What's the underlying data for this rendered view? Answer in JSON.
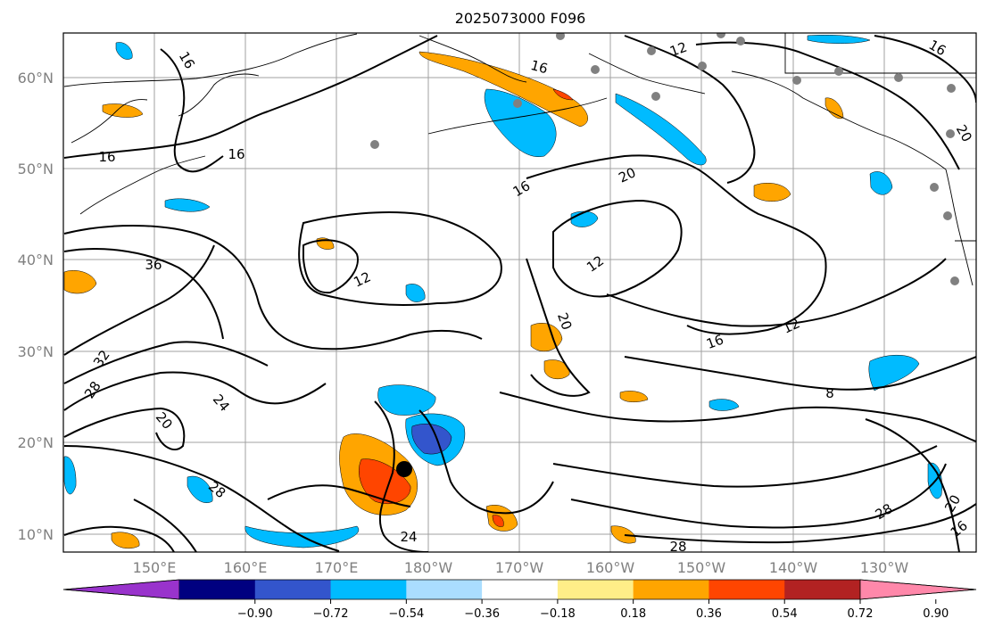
{
  "title": "2025073000 F096",
  "map": {
    "lat_ticks": [
      "10°N",
      "20°N",
      "30°N",
      "40°N",
      "50°N",
      "60°N"
    ],
    "lon_ticks": [
      "150°E",
      "160°E",
      "170°E",
      "180°W",
      "170°W",
      "160°W",
      "150°W",
      "140°W",
      "130°W"
    ],
    "contour_labels": [
      "16",
      "16",
      "16",
      "16",
      "20",
      "16",
      "12",
      "12",
      "16",
      "12",
      "36",
      "32",
      "28",
      "24",
      "20",
      "20",
      "8",
      "28",
      "28",
      "28",
      "20",
      "16",
      "24",
      "16",
      "12",
      "20"
    ],
    "storm_marker": "black-dot"
  },
  "colorbar": {
    "colors": [
      "#9933cc",
      "#000080",
      "#3355cc",
      "#00bbff",
      "#aaddff",
      "#ffffff",
      "#ffee88",
      "#ffa500",
      "#ff4500",
      "#b22222",
      "#ff88aa"
    ],
    "tick_labels": [
      "−0.90",
      "−0.72",
      "−0.54",
      "−0.36",
      "−0.18",
      "0.18",
      "0.36",
      "0.54",
      "0.72",
      "0.90"
    ]
  }
}
